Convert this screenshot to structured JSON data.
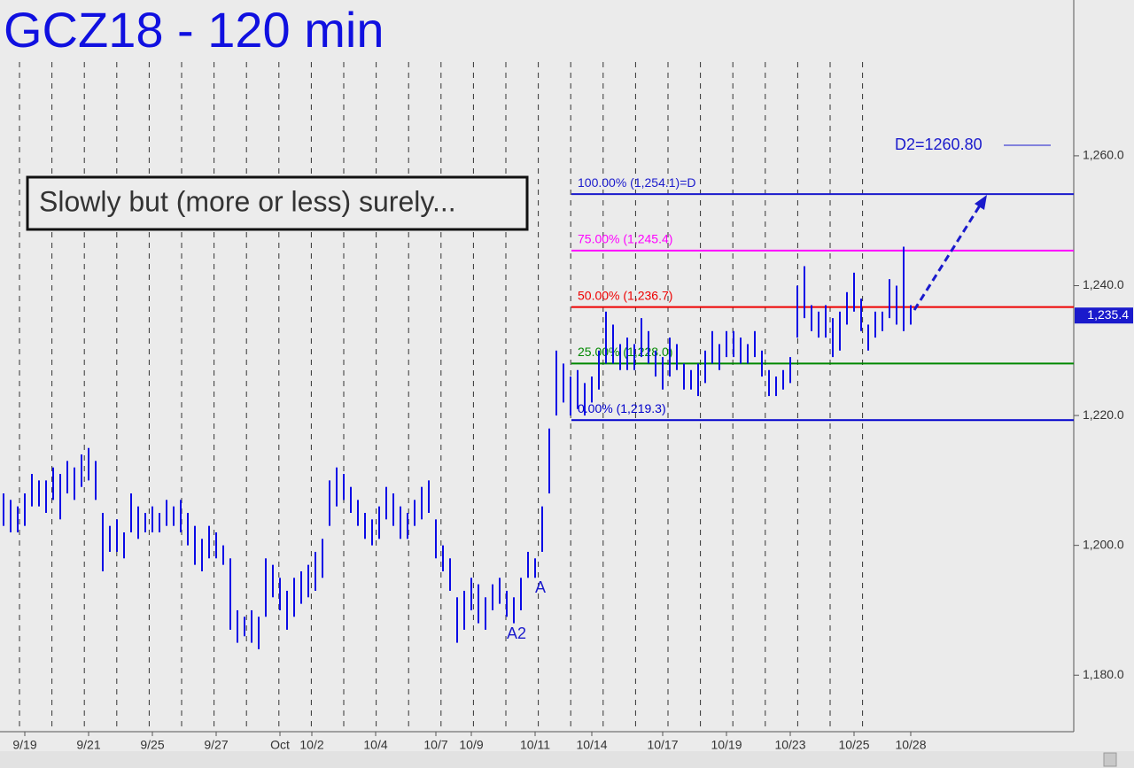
{
  "chart_data": {
    "type": "ohlc",
    "title": "GCZ18 - 120 min",
    "annotation_box": "Slowly but (more or less) surely...",
    "color": "#0a0ae6",
    "high": [
      1208,
      1207,
      1206,
      1208,
      1211,
      1210,
      1210,
      1212,
      1211,
      1213,
      1212,
      1214,
      1215,
      1213,
      1205,
      1203,
      1204,
      1202,
      1208,
      1206,
      1205,
      1206,
      1205,
      1207,
      1206,
      1207,
      1205,
      1203,
      1201,
      1203,
      1202,
      1200,
      1198,
      1190,
      1189,
      1190,
      1189,
      1198,
      1197,
      1195,
      1193,
      1195,
      1196,
      1197,
      1199,
      1201,
      1210,
      1212,
      1211,
      1209,
      1207,
      1205,
      1204,
      1206,
      1209,
      1208,
      1206,
      1205,
      1207,
      1209,
      1210,
      1204,
      1200,
      1198,
      1192,
      1193,
      1195,
      1194,
      1192,
      1194,
      1195,
      1193,
      1192,
      1195,
      1199,
      1198,
      1206,
      1218,
      1230,
      1228,
      1226,
      1227,
      1225,
      1226,
      1230,
      1236,
      1234,
      1231,
      1232,
      1231,
      1235,
      1233,
      1230,
      1229,
      1232,
      1231,
      1228,
      1227,
      1228,
      1230,
      1233,
      1231,
      1233,
      1233,
      1232,
      1231,
      1233,
      1230,
      1227,
      1226,
      1227,
      1229,
      1240,
      1243,
      1237,
      1236,
      1237,
      1235,
      1236,
      1239,
      1242,
      1238,
      1234,
      1236,
      1236,
      1241,
      1240,
      1246,
      1237
    ],
    "low": [
      1203,
      1202,
      1202,
      1203,
      1206,
      1206,
      1205,
      1207,
      1204,
      1208,
      1207,
      1209,
      1210,
      1207,
      1196,
      1199,
      1199,
      1198,
      1202,
      1201,
      1202,
      1202,
      1202,
      1203,
      1203,
      1202,
      1200,
      1197,
      1196,
      1198,
      1198,
      1197,
      1187,
      1185,
      1186,
      1185,
      1184,
      1189,
      1192,
      1190,
      1187,
      1189,
      1191,
      1192,
      1193,
      1195,
      1203,
      1206,
      1207,
      1205,
      1203,
      1201,
      1200,
      1201,
      1204,
      1203,
      1201,
      1201,
      1203,
      1204,
      1205,
      1198,
      1196,
      1193,
      1185,
      1187,
      1190,
      1188,
      1187,
      1190,
      1191,
      1189,
      1188,
      1190,
      1195,
      1195,
      1199,
      1208,
      1220,
      1222,
      1220,
      1221,
      1220,
      1222,
      1224,
      1228,
      1228,
      1227,
      1227,
      1227,
      1229,
      1228,
      1226,
      1224,
      1226,
      1227,
      1224,
      1224,
      1223,
      1225,
      1228,
      1227,
      1229,
      1229,
      1228,
      1228,
      1229,
      1226,
      1223,
      1223,
      1224,
      1225,
      1232,
      1235,
      1233,
      1232,
      1232,
      1229,
      1230,
      1234,
      1236,
      1233,
      1230,
      1232,
      1233,
      1235,
      1234,
      1233,
      1234
    ],
    "xlim": [
      -0.5,
      151
    ],
    "xticks": [
      {
        "value": 3,
        "label": "9/19"
      },
      {
        "value": 12,
        "label": "9/21"
      },
      {
        "value": 21,
        "label": "9/25"
      },
      {
        "value": 30,
        "label": "9/27"
      },
      {
        "value": 39,
        "label": "Oct"
      },
      {
        "value": 43.5,
        "label": "10/2"
      },
      {
        "value": 52.5,
        "label": "10/4"
      },
      {
        "value": 61,
        "label": "10/7"
      },
      {
        "value": 66,
        "label": "10/9"
      },
      {
        "value": 75,
        "label": "10/11"
      },
      {
        "value": 83,
        "label": "10/14"
      },
      {
        "value": 93,
        "label": "10/17"
      },
      {
        "value": 102,
        "label": "10/19"
      },
      {
        "value": 111,
        "label": "10/23"
      },
      {
        "value": 120,
        "label": "10/25"
      },
      {
        "value": 128,
        "label": "10/28"
      }
    ],
    "ylim": [
      1171.3,
      1284
    ],
    "yticks": [
      {
        "value": 1180,
        "label": "1,180.0"
      },
      {
        "value": 1200,
        "label": "1,200.0"
      },
      {
        "value": 1220,
        "label": "1,220.0"
      },
      {
        "value": 1240,
        "label": "1,240.0"
      },
      {
        "value": 1260,
        "label": "1,260.0"
      }
    ],
    "last_price": {
      "value": 1235.4,
      "label": "1,235.4"
    },
    "levels": [
      {
        "label": "100.00% (1,254.1)=D",
        "value": 1254.1,
        "color": "#1a1acc"
      },
      {
        "label": "75.00% (1,245.4)",
        "value": 1245.4,
        "color": "#ff00ff"
      },
      {
        "label": "50.00% (1,236.7)",
        "value": 1236.7,
        "color": "#ee0000"
      },
      {
        "label": "25.00% (1,228.0)",
        "value": 1228.0,
        "color": "#008800"
      },
      {
        "label": "0.00% (1,219.3)",
        "value": 1219.3,
        "color": "#0000cc"
      }
    ],
    "target": {
      "label": "D2=1260.80",
      "value": 1260.8
    },
    "wave_labels": [
      "A2",
      "A"
    ]
  }
}
